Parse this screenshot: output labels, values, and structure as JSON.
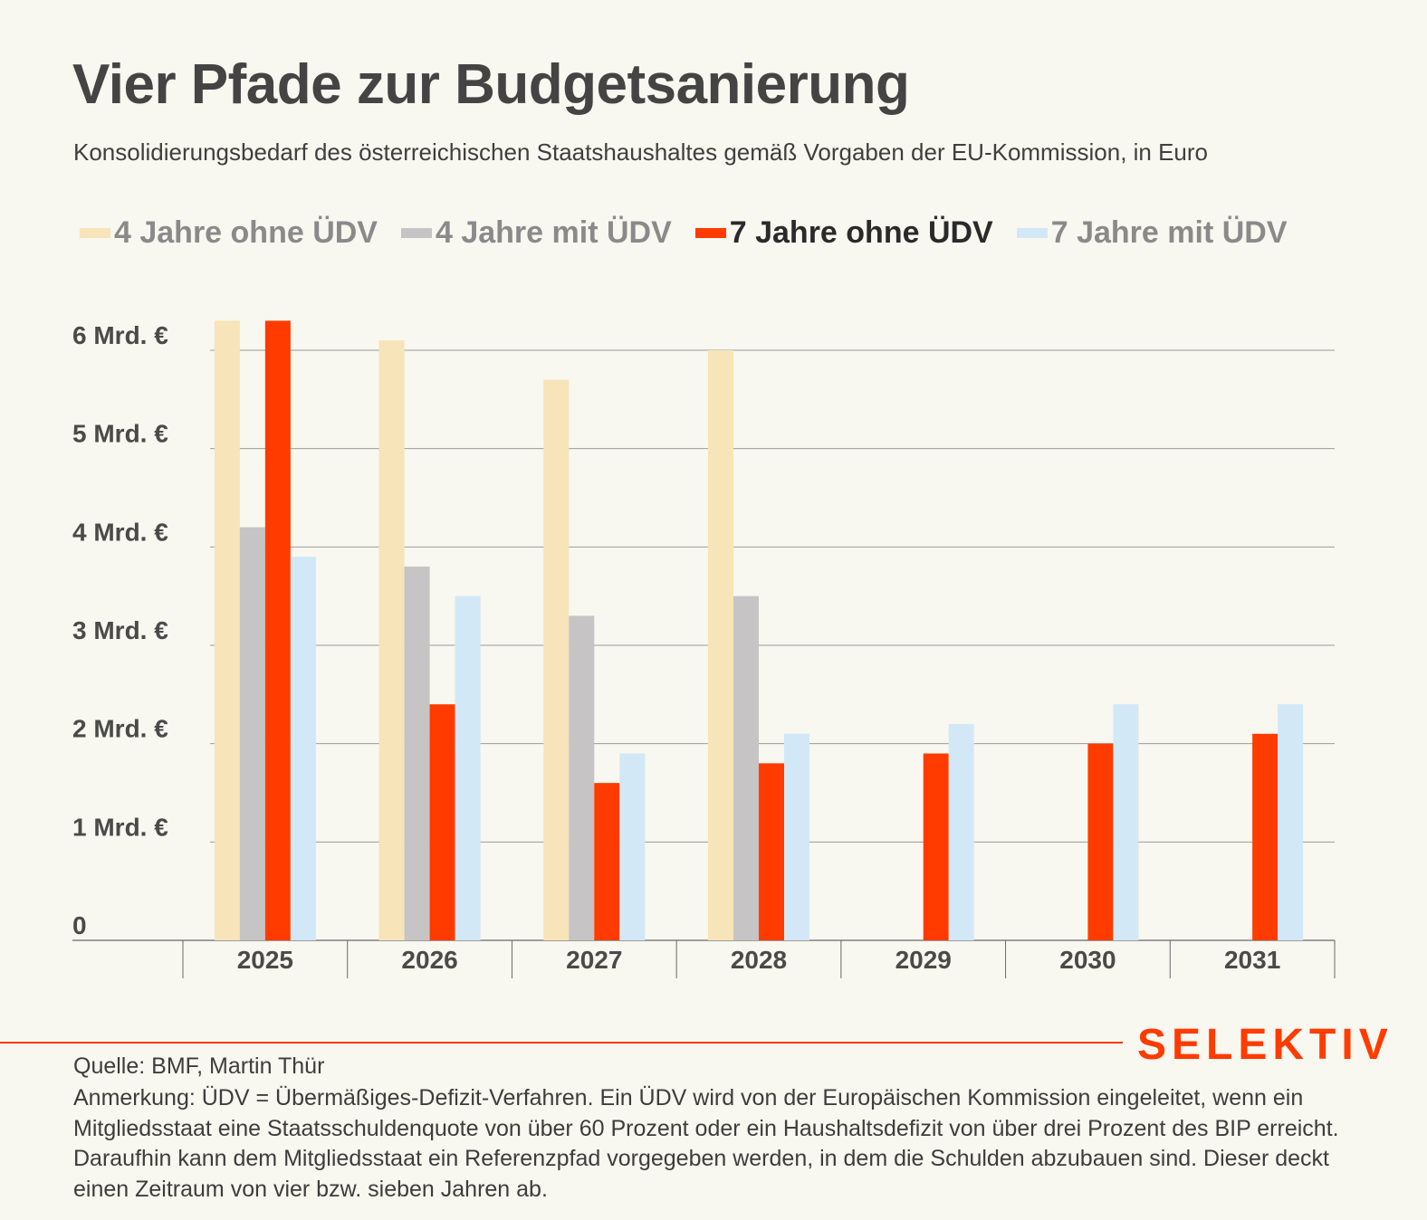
{
  "title": "Vier Pfade zur Budgetsanierung",
  "subtitle": "Konsolidierungsbedarf des österreichischen Staatshaushaltes gemäß Vorgaben der EU-Kommission, in Euro",
  "legend": [
    {
      "label": "4 Jahre ohne ÜDV",
      "color": "#f7e4b8",
      "active": false
    },
    {
      "label": "4 Jahre mit ÜDV",
      "color": "#c6c4c4",
      "active": false
    },
    {
      "label": "7 Jahre ohne ÜDV",
      "color": "#ff3b00",
      "active": true
    },
    {
      "label": "7 Jahre mit ÜDV",
      "color": "#d2e8f6",
      "active": false
    }
  ],
  "chart_data": {
    "type": "bar",
    "categories": [
      "2025",
      "2026",
      "2027",
      "2028",
      "2029",
      "2030",
      "2031"
    ],
    "series": [
      {
        "name": "4 Jahre ohne ÜDV",
        "color": "#f7e4b8",
        "values": [
          6.3,
          6.1,
          5.7,
          6.0,
          null,
          null,
          null
        ]
      },
      {
        "name": "4 Jahre mit ÜDV",
        "color": "#c6c4c4",
        "values": [
          4.2,
          3.8,
          3.3,
          3.5,
          null,
          null,
          null
        ]
      },
      {
        "name": "7 Jahre ohne ÜDV",
        "color": "#ff3b00",
        "values": [
          6.3,
          2.4,
          1.6,
          1.8,
          1.9,
          2.0,
          2.1
        ]
      },
      {
        "name": "7 Jahre mit ÜDV",
        "color": "#d2e8f6",
        "values": [
          3.9,
          3.5,
          1.9,
          2.1,
          2.2,
          2.4,
          2.4
        ]
      }
    ],
    "yticks": [
      0,
      1,
      2,
      3,
      4,
      5,
      6
    ],
    "ytick_labels": [
      "0",
      "1 Mrd. €",
      "2 Mrd. €",
      "3 Mrd. €",
      "4 Mrd. €",
      "5 Mrd. €",
      "6 Mrd. €"
    ],
    "ylim": [
      0,
      6
    ],
    "grid": true,
    "legend_position": "top"
  },
  "footer": {
    "brand": "SELEKTIV",
    "source": "Quelle: BMF, Martin Thür",
    "note": "Anmerkung: ÜDV = Übermäßiges-Defizit-Verfahren. Ein ÜDV wird von der Europäischen Kommission eingeleitet, wenn ein Mitgliedsstaat eine Staatsschuldenquote von über 60 Prozent oder ein Haushaltsdefizit von über drei Prozent des BIP erreicht. Daraufhin kann dem Mitgliedsstaat ein Referenzpfad vorgegeben werden, in dem die Schulden abzubauen sind. Dieser deckt einen Zeitraum von vier bzw. sieben Jahren ab."
  }
}
